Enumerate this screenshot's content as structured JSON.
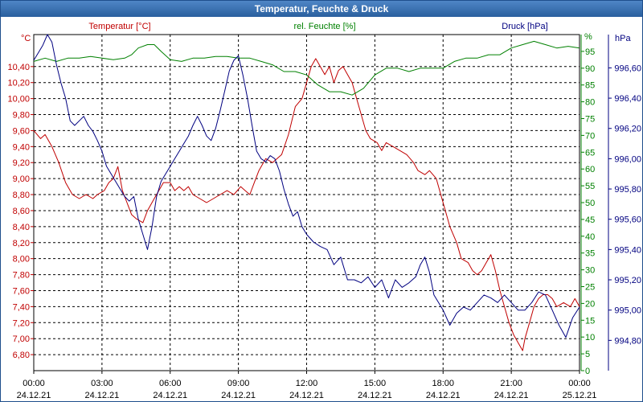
{
  "window": {
    "title": "Temperatur, Feuchte & Druck"
  },
  "colors": {
    "temp": "#c00000",
    "humidity": "#008000",
    "pressure": "#000080",
    "grid": "#000000",
    "axis": "#000000"
  },
  "chart_data": {
    "type": "line",
    "title": "Temperatur, Feuchte & Druck",
    "x_tick_labels": [
      {
        "time": "00:00",
        "date": "24.12.21"
      },
      {
        "time": "03:00",
        "date": "24.12.21"
      },
      {
        "time": "06:00",
        "date": "24.12.21"
      },
      {
        "time": "09:00",
        "date": "24.12.21"
      },
      {
        "time": "12:00",
        "date": "24.12.21"
      },
      {
        "time": "15:00",
        "date": "24.12.21"
      },
      {
        "time": "18:00",
        "date": "24.12.21"
      },
      {
        "time": "21:00",
        "date": "24.12.21"
      },
      {
        "time": "00:00",
        "date": "25.12.21"
      }
    ],
    "xlim": [
      0,
      24
    ],
    "axes": {
      "temp": {
        "unit": "°C",
        "legend": "Temperatur [°C]",
        "ylim": [
          6.6,
          10.8
        ],
        "ticks": [
          "6,80",
          "7,00",
          "7,20",
          "7,40",
          "7,60",
          "7,80",
          "8,00",
          "8,20",
          "8,40",
          "8,60",
          "8,80",
          "9,00",
          "9,20",
          "9,40",
          "9,60",
          "9,80",
          "10,00",
          "10,20",
          "10,40"
        ]
      },
      "humidity": {
        "unit": "%",
        "legend": "rel. Feuchte [%]",
        "ylim": [
          0,
          100
        ],
        "ticks": [
          "0",
          "5",
          "10",
          "15",
          "20",
          "25",
          "30",
          "35",
          "40",
          "45",
          "50",
          "55",
          "60",
          "65",
          "70",
          "75",
          "80",
          "85",
          "90",
          "95"
        ]
      },
      "pressure": {
        "unit": "hPa",
        "legend": "Druck [hPa]",
        "ylim": [
          994.6,
          996.82
        ],
        "ticks": [
          "994,80",
          "995,00",
          "995,20",
          "995,40",
          "995,60",
          "995,80",
          "996,00",
          "996,20",
          "996,40",
          "996,60"
        ]
      }
    },
    "series": [
      {
        "name": "Temperatur [°C]",
        "axis": "temp",
        "color": "#c00000",
        "points": [
          [
            0,
            9.6
          ],
          [
            0.3,
            9.5
          ],
          [
            0.5,
            9.55
          ],
          [
            0.8,
            9.4
          ],
          [
            1.1,
            9.2
          ],
          [
            1.4,
            8.95
          ],
          [
            1.7,
            8.8
          ],
          [
            2.0,
            8.75
          ],
          [
            2.3,
            8.8
          ],
          [
            2.6,
            8.75
          ],
          [
            2.8,
            8.8
          ],
          [
            3.1,
            8.85
          ],
          [
            3.3,
            8.95
          ],
          [
            3.5,
            9.0
          ],
          [
            3.7,
            9.15
          ],
          [
            3.9,
            8.85
          ],
          [
            4.1,
            8.7
          ],
          [
            4.3,
            8.55
          ],
          [
            4.5,
            8.5
          ],
          [
            4.8,
            8.45
          ],
          [
            5.0,
            8.6
          ],
          [
            5.3,
            8.75
          ],
          [
            5.5,
            8.85
          ],
          [
            5.7,
            8.95
          ],
          [
            6.0,
            8.95
          ],
          [
            6.2,
            8.85
          ],
          [
            6.4,
            8.9
          ],
          [
            6.6,
            8.85
          ],
          [
            6.8,
            8.9
          ],
          [
            7.0,
            8.8
          ],
          [
            7.3,
            8.75
          ],
          [
            7.6,
            8.7
          ],
          [
            7.9,
            8.75
          ],
          [
            8.2,
            8.8
          ],
          [
            8.5,
            8.85
          ],
          [
            8.8,
            8.8
          ],
          [
            9.1,
            8.9
          ],
          [
            9.3,
            8.85
          ],
          [
            9.5,
            8.8
          ],
          [
            9.7,
            8.95
          ],
          [
            9.9,
            9.1
          ],
          [
            10.2,
            9.25
          ],
          [
            10.5,
            9.2
          ],
          [
            10.9,
            9.3
          ],
          [
            11.2,
            9.55
          ],
          [
            11.5,
            9.9
          ],
          [
            11.8,
            10.0
          ],
          [
            12.0,
            10.2
          ],
          [
            12.2,
            10.4
          ],
          [
            12.4,
            10.5
          ],
          [
            12.6,
            10.4
          ],
          [
            12.8,
            10.3
          ],
          [
            13.0,
            10.4
          ],
          [
            13.2,
            10.2
          ],
          [
            13.4,
            10.35
          ],
          [
            13.6,
            10.4
          ],
          [
            13.8,
            10.3
          ],
          [
            14.0,
            10.2
          ],
          [
            14.2,
            10.0
          ],
          [
            14.4,
            9.8
          ],
          [
            14.6,
            9.6
          ],
          [
            14.8,
            9.5
          ],
          [
            15.1,
            9.45
          ],
          [
            15.3,
            9.35
          ],
          [
            15.5,
            9.45
          ],
          [
            15.8,
            9.4
          ],
          [
            16.1,
            9.35
          ],
          [
            16.4,
            9.3
          ],
          [
            16.7,
            9.2
          ],
          [
            16.9,
            9.1
          ],
          [
            17.2,
            9.05
          ],
          [
            17.4,
            9.1
          ],
          [
            17.7,
            9.0
          ],
          [
            17.9,
            8.8
          ],
          [
            18.1,
            8.6
          ],
          [
            18.3,
            8.4
          ],
          [
            18.6,
            8.2
          ],
          [
            18.8,
            8.0
          ],
          [
            19.1,
            7.95
          ],
          [
            19.3,
            7.85
          ],
          [
            19.5,
            7.8
          ],
          [
            19.7,
            7.85
          ],
          [
            19.9,
            7.95
          ],
          [
            20.1,
            8.05
          ],
          [
            20.3,
            7.85
          ],
          [
            20.5,
            7.6
          ],
          [
            20.7,
            7.4
          ],
          [
            20.9,
            7.2
          ],
          [
            21.1,
            7.05
          ],
          [
            21.3,
            6.95
          ],
          [
            21.5,
            6.85
          ],
          [
            21.6,
            7.0
          ],
          [
            21.8,
            7.2
          ],
          [
            22.0,
            7.4
          ],
          [
            22.2,
            7.5
          ],
          [
            22.4,
            7.55
          ],
          [
            22.6,
            7.55
          ],
          [
            22.8,
            7.5
          ],
          [
            23.0,
            7.4
          ],
          [
            23.3,
            7.45
          ],
          [
            23.6,
            7.4
          ],
          [
            23.8,
            7.5
          ],
          [
            24,
            7.4
          ]
        ]
      },
      {
        "name": "rel. Feuchte [%]",
        "axis": "humidity",
        "color": "#008000",
        "points": [
          [
            0,
            92
          ],
          [
            0.5,
            93
          ],
          [
            1.0,
            92
          ],
          [
            1.5,
            93
          ],
          [
            2.0,
            93
          ],
          [
            2.5,
            93.5
          ],
          [
            3.0,
            93
          ],
          [
            3.5,
            92.5
          ],
          [
            4.0,
            93
          ],
          [
            4.3,
            94
          ],
          [
            4.6,
            96
          ],
          [
            5.0,
            97
          ],
          [
            5.3,
            97
          ],
          [
            5.6,
            95
          ],
          [
            6.0,
            92.5
          ],
          [
            6.5,
            92
          ],
          [
            7.0,
            93
          ],
          [
            7.5,
            93
          ],
          [
            8.0,
            93.5
          ],
          [
            8.5,
            93.5
          ],
          [
            9.0,
            93
          ],
          [
            9.5,
            93
          ],
          [
            10.0,
            92
          ],
          [
            10.5,
            91
          ],
          [
            11.0,
            89
          ],
          [
            11.5,
            89
          ],
          [
            12.0,
            88
          ],
          [
            12.5,
            85
          ],
          [
            13.0,
            83
          ],
          [
            13.5,
            83
          ],
          [
            14.0,
            82
          ],
          [
            14.5,
            84
          ],
          [
            15.0,
            88
          ],
          [
            15.5,
            90
          ],
          [
            16.0,
            90
          ],
          [
            16.5,
            89
          ],
          [
            17.0,
            90
          ],
          [
            17.5,
            90
          ],
          [
            18.0,
            90
          ],
          [
            18.5,
            92
          ],
          [
            19.0,
            93
          ],
          [
            19.5,
            93
          ],
          [
            20.0,
            94
          ],
          [
            20.5,
            94
          ],
          [
            21.0,
            96
          ],
          [
            21.5,
            97
          ],
          [
            22.0,
            98
          ],
          [
            22.5,
            97
          ],
          [
            23.0,
            96
          ],
          [
            23.5,
            96.5
          ],
          [
            24,
            96
          ]
        ]
      },
      {
        "name": "Druck [hPa]",
        "axis": "pressure",
        "color": "#000080",
        "points": [
          [
            0,
            996.65
          ],
          [
            0.2,
            996.7
          ],
          [
            0.4,
            996.75
          ],
          [
            0.6,
            996.82
          ],
          [
            0.8,
            996.77
          ],
          [
            1.0,
            996.62
          ],
          [
            1.2,
            996.5
          ],
          [
            1.4,
            996.4
          ],
          [
            1.6,
            996.25
          ],
          [
            1.8,
            996.22
          ],
          [
            2.0,
            996.25
          ],
          [
            2.2,
            996.28
          ],
          [
            2.4,
            996.22
          ],
          [
            2.6,
            996.18
          ],
          [
            2.8,
            996.12
          ],
          [
            3.0,
            996.05
          ],
          [
            3.2,
            995.95
          ],
          [
            3.4,
            995.9
          ],
          [
            3.6,
            995.85
          ],
          [
            3.8,
            995.8
          ],
          [
            4.0,
            995.75
          ],
          [
            4.2,
            995.72
          ],
          [
            4.4,
            995.75
          ],
          [
            4.6,
            995.6
          ],
          [
            4.8,
            995.5
          ],
          [
            5.0,
            995.4
          ],
          [
            5.2,
            995.55
          ],
          [
            5.4,
            995.75
          ],
          [
            5.6,
            995.85
          ],
          [
            5.8,
            995.9
          ],
          [
            6.0,
            995.95
          ],
          [
            6.2,
            996.0
          ],
          [
            6.4,
            996.05
          ],
          [
            6.6,
            996.1
          ],
          [
            6.8,
            996.15
          ],
          [
            7.0,
            996.22
          ],
          [
            7.2,
            996.28
          ],
          [
            7.4,
            996.22
          ],
          [
            7.6,
            996.15
          ],
          [
            7.8,
            996.12
          ],
          [
            8.0,
            996.2
          ],
          [
            8.2,
            996.32
          ],
          [
            8.4,
            996.45
          ],
          [
            8.6,
            996.58
          ],
          [
            8.8,
            996.65
          ],
          [
            9.0,
            996.68
          ],
          [
            9.2,
            996.55
          ],
          [
            9.4,
            996.4
          ],
          [
            9.6,
            996.22
          ],
          [
            9.8,
            996.05
          ],
          [
            10.0,
            996.0
          ],
          [
            10.2,
            995.98
          ],
          [
            10.4,
            996.02
          ],
          [
            10.6,
            996.0
          ],
          [
            10.8,
            995.92
          ],
          [
            11.0,
            995.8
          ],
          [
            11.2,
            995.7
          ],
          [
            11.4,
            995.62
          ],
          [
            11.6,
            995.65
          ],
          [
            11.8,
            995.55
          ],
          [
            12.0,
            995.5
          ],
          [
            12.3,
            995.45
          ],
          [
            12.6,
            995.42
          ],
          [
            12.9,
            995.4
          ],
          [
            13.2,
            995.3
          ],
          [
            13.5,
            995.35
          ],
          [
            13.8,
            995.2
          ],
          [
            14.1,
            995.2
          ],
          [
            14.4,
            995.18
          ],
          [
            14.7,
            995.22
          ],
          [
            15.0,
            995.15
          ],
          [
            15.3,
            995.2
          ],
          [
            15.6,
            995.08
          ],
          [
            15.9,
            995.2
          ],
          [
            16.2,
            995.15
          ],
          [
            16.5,
            995.18
          ],
          [
            16.8,
            995.22
          ],
          [
            17.0,
            995.3
          ],
          [
            17.2,
            995.35
          ],
          [
            17.4,
            995.25
          ],
          [
            17.6,
            995.1
          ],
          [
            17.8,
            995.05
          ],
          [
            18.0,
            995.0
          ],
          [
            18.3,
            994.9
          ],
          [
            18.6,
            994.98
          ],
          [
            18.9,
            995.02
          ],
          [
            19.2,
            995.0
          ],
          [
            19.5,
            995.05
          ],
          [
            19.8,
            995.1
          ],
          [
            20.1,
            995.08
          ],
          [
            20.4,
            995.05
          ],
          [
            20.7,
            995.1
          ],
          [
            21.0,
            995.05
          ],
          [
            21.3,
            995.0
          ],
          [
            21.6,
            995.0
          ],
          [
            21.9,
            995.05
          ],
          [
            22.2,
            995.12
          ],
          [
            22.5,
            995.1
          ],
          [
            22.8,
            995.0
          ],
          [
            23.1,
            994.9
          ],
          [
            23.4,
            994.82
          ],
          [
            23.7,
            994.95
          ],
          [
            24,
            995.02
          ]
        ]
      }
    ]
  }
}
